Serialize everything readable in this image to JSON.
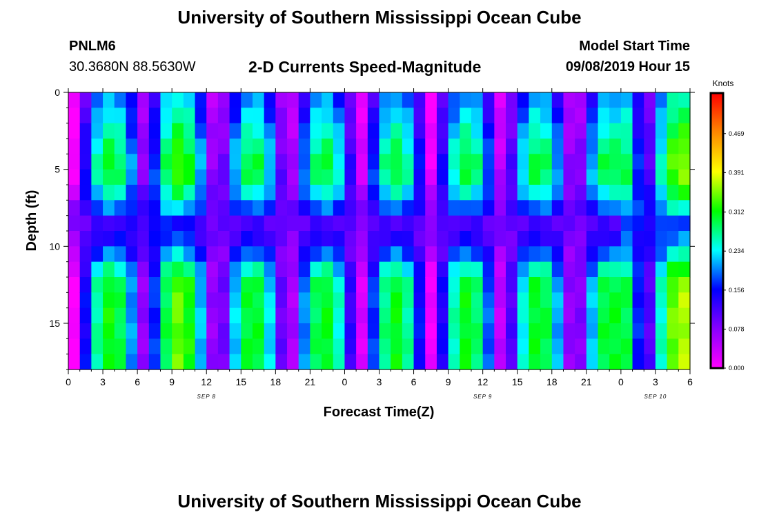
{
  "header": {
    "title_top": "University of Southern Mississippi Ocean Cube",
    "title_bottom": "University of Southern Mississippi Ocean Cube",
    "station": "PNLM6",
    "coordinates": "30.3680N 88.5630W",
    "model_start_label": "Model Start Time",
    "model_start_value": "09/08/2019 Hour 15"
  },
  "chart_data": {
    "type": "heatmap",
    "title": "2-D Currents Speed-Magnitude",
    "xlabel": "Forecast Time(Z)",
    "ylabel": "Depth (ft)",
    "x_tick_labels": [
      "0",
      "3",
      "6",
      "9",
      "12",
      "15",
      "18",
      "21",
      "0",
      "3",
      "6",
      "9",
      "12",
      "15",
      "18",
      "21",
      "0",
      "3",
      "6"
    ],
    "x_range_hours": [
      0,
      54
    ],
    "date_labels": [
      {
        "text": "SEP 8",
        "hour": 12
      },
      {
        "text": "SEP 9",
        "hour": 36
      },
      {
        "text": "SEP 10",
        "hour": 51
      }
    ],
    "y_ticks": [
      0,
      5,
      10,
      15
    ],
    "y_range": [
      0,
      18
    ],
    "y_inverted": true,
    "colorbar": {
      "unit": "Knots",
      "ticks": [
        "0.000",
        "0.078",
        "0.156",
        "0.234",
        "0.312",
        "0.391",
        "0.469"
      ],
      "range": [
        0,
        0.55
      ],
      "colors": [
        "#ff00ff",
        "#8800ff",
        "#0000ff",
        "#00ffff",
        "#00ff00",
        "#ffff00",
        "#ff8800",
        "#ff0000"
      ]
    },
    "grid": false,
    "n_time_steps": 54,
    "n_depth_levels": 18,
    "values_note_knots": "sampled approx"
  }
}
